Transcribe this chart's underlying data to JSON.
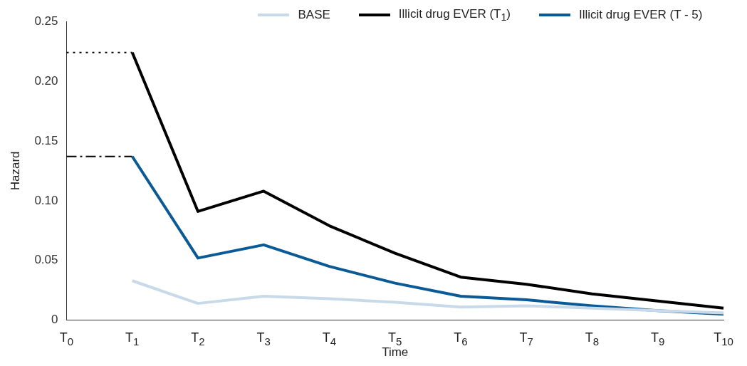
{
  "chart_data": {
    "type": "line",
    "xlabel": "Time",
    "ylabel": "Hazard",
    "categories": [
      "T$_{0}$",
      "T$_{1}$",
      "T$_{2}$",
      "T$_{3}$",
      "T$_{4}$",
      "T$_{5}$",
      "T$_{6}$",
      "T$_{7}$",
      "T$_{8}$",
      "T$_{9}$",
      "T$_{10}$"
    ],
    "ylim": [
      0,
      0.25
    ],
    "yticks": [
      0,
      0.05,
      {
        "value": 0.1,
        "label": "0.10"
      },
      0.15,
      {
        "value": 0.2,
        "label": "0.20"
      },
      0.25
    ],
    "grid": false,
    "legend": "top",
    "marker": "none",
    "series": [
      {
        "name": "BASE",
        "color": "#c8dae9",
        "values": [
          null,
          0.033,
          0.014,
          0.02,
          0.018,
          0.015,
          0.011,
          0.012,
          0.01,
          0.008,
          0.006
        ]
      },
      {
        "name": "Illicit drug EVER (T$_{1}$)",
        "color": "#000000",
        "values": [
          null,
          0.224,
          0.091,
          0.108,
          0.079,
          0.056,
          0.036,
          0.03,
          0.022,
          0.016,
          0.01
        ]
      },
      {
        "name": "Illicit drug EVER (T - 5)",
        "color": "#0a5a96",
        "values": [
          null,
          0.137,
          0.052,
          0.063,
          0.045,
          0.031,
          0.02,
          0.017,
          0.012,
          0.008,
          0.005
        ]
      },
      {
        "color": "#000000",
        "line_style": "dotted",
        "values": [
          0.224,
          0.224,
          null,
          null,
          null,
          null,
          null,
          null,
          null,
          null,
          null
        ]
      },
      {
        "color": "#000000",
        "line_style": "dashed",
        "values": [
          0.137,
          0.137,
          null,
          null,
          null,
          null,
          null,
          null,
          null,
          null,
          null
        ]
      }
    ]
  }
}
